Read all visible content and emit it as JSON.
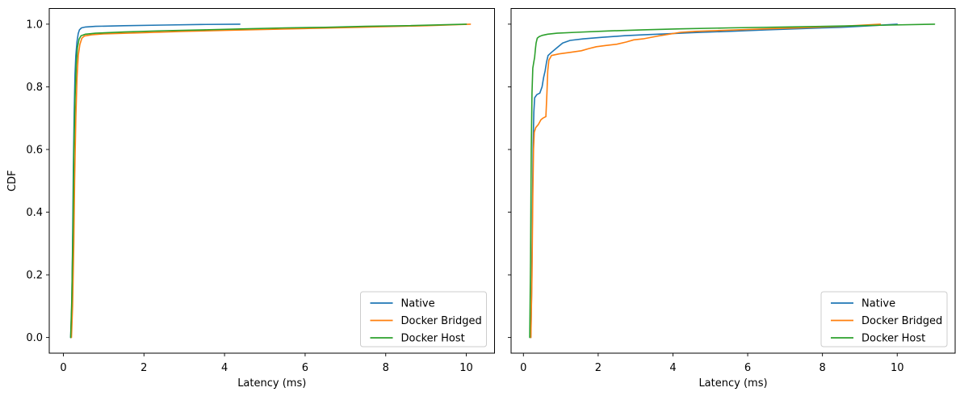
{
  "figure": {
    "background": "#ffffff"
  },
  "colors": {
    "native": "#1f77b4",
    "docker_bridged": "#ff7f0e",
    "docker_host": "#2ca02c",
    "spine": "#000000",
    "legend_border": "#cccccc"
  },
  "chart_data": [
    {
      "id": "left",
      "type": "line",
      "subtype": "cdf",
      "title": "",
      "xlabel": "Latency (ms)",
      "ylabel": "CDF",
      "xlim": [
        -0.35,
        10.7
      ],
      "ylim": [
        -0.05,
        1.05
      ],
      "xticks": [
        0,
        2,
        4,
        6,
        8,
        10
      ],
      "xtick_labels": [
        "0",
        "2",
        "4",
        "6",
        "8",
        "10"
      ],
      "yticks": [
        0.0,
        0.2,
        0.4,
        0.6,
        0.8,
        1.0
      ],
      "ytick_labels": [
        "0.0",
        "0.2",
        "0.4",
        "0.6",
        "0.8",
        "1.0"
      ],
      "show_ytick_labels": true,
      "grid": false,
      "legend": {
        "position": "lower right",
        "entries": [
          "Native",
          "Docker Bridged",
          "Docker Host"
        ]
      },
      "series": [
        {
          "name": "Native",
          "color": "#1f77b4",
          "points": [
            [
              0.18,
              0
            ],
            [
              0.21,
              0.1
            ],
            [
              0.23,
              0.3
            ],
            [
              0.25,
              0.55
            ],
            [
              0.27,
              0.72
            ],
            [
              0.29,
              0.84
            ],
            [
              0.31,
              0.9
            ],
            [
              0.34,
              0.945
            ],
            [
              0.37,
              0.97
            ],
            [
              0.4,
              0.982
            ],
            [
              0.45,
              0.988
            ],
            [
              0.55,
              0.991
            ],
            [
              0.8,
              0.993
            ],
            [
              1.5,
              0.995
            ],
            [
              2.5,
              0.997
            ],
            [
              3.4,
              0.999
            ],
            [
              4.38,
              1.0
            ]
          ]
        },
        {
          "name": "Docker Bridged",
          "color": "#ff7f0e",
          "points": [
            [
              0.2,
              0
            ],
            [
              0.23,
              0.1
            ],
            [
              0.26,
              0.3
            ],
            [
              0.28,
              0.5
            ],
            [
              0.31,
              0.7
            ],
            [
              0.34,
              0.83
            ],
            [
              0.37,
              0.9
            ],
            [
              0.41,
              0.935
            ],
            [
              0.46,
              0.955
            ],
            [
              0.52,
              0.962
            ],
            [
              0.7,
              0.966
            ],
            [
              1.0,
              0.969
            ],
            [
              2.0,
              0.973
            ],
            [
              3.0,
              0.977
            ],
            [
              4.0,
              0.98
            ],
            [
              5.0,
              0.983
            ],
            [
              6.0,
              0.986
            ],
            [
              7.0,
              0.989
            ],
            [
              8.0,
              0.992
            ],
            [
              9.0,
              0.995
            ],
            [
              10.1,
              1.0
            ]
          ]
        },
        {
          "name": "Docker Host",
          "color": "#2ca02c",
          "points": [
            [
              0.18,
              0
            ],
            [
              0.21,
              0.12
            ],
            [
              0.24,
              0.35
            ],
            [
              0.26,
              0.58
            ],
            [
              0.29,
              0.76
            ],
            [
              0.32,
              0.87
            ],
            [
              0.35,
              0.925
            ],
            [
              0.39,
              0.952
            ],
            [
              0.44,
              0.963
            ],
            [
              0.55,
              0.968
            ],
            [
              0.8,
              0.971
            ],
            [
              1.5,
              0.975
            ],
            [
              2.5,
              0.979
            ],
            [
              3.5,
              0.982
            ],
            [
              4.5,
              0.985
            ],
            [
              5.5,
              0.988
            ],
            [
              6.5,
              0.99
            ],
            [
              7.5,
              0.993
            ],
            [
              8.5,
              0.995
            ],
            [
              10.0,
              1.0
            ]
          ]
        }
      ]
    },
    {
      "id": "right",
      "type": "line",
      "subtype": "cdf",
      "title": "",
      "xlabel": "Latency (ms)",
      "ylabel": "",
      "xlim": [
        -0.33,
        11.55
      ],
      "ylim": [
        -0.05,
        1.05
      ],
      "xticks": [
        0,
        2,
        4,
        6,
        8,
        10
      ],
      "xtick_labels": [
        "0",
        "2",
        "4",
        "6",
        "8",
        "10"
      ],
      "yticks": [
        0.0,
        0.2,
        0.4,
        0.6,
        0.8,
        1.0
      ],
      "ytick_labels": [
        "0.0",
        "0.2",
        "0.4",
        "0.6",
        "0.8",
        "1.0"
      ],
      "show_ytick_labels": false,
      "grid": false,
      "legend": {
        "position": "lower right",
        "entries": [
          "Native",
          "Docker Bridged",
          "Docker Host"
        ]
      },
      "series": [
        {
          "name": "Native",
          "color": "#1f77b4",
          "points": [
            [
              0.2,
              0
            ],
            [
              0.22,
              0.15
            ],
            [
              0.24,
              0.4
            ],
            [
              0.26,
              0.62
            ],
            [
              0.28,
              0.72
            ],
            [
              0.3,
              0.765
            ],
            [
              0.36,
              0.775
            ],
            [
              0.44,
              0.78
            ],
            [
              0.5,
              0.8
            ],
            [
              0.54,
              0.83
            ],
            [
              0.58,
              0.85
            ],
            [
              0.62,
              0.88
            ],
            [
              0.66,
              0.9
            ],
            [
              0.75,
              0.91
            ],
            [
              0.9,
              0.925
            ],
            [
              1.05,
              0.94
            ],
            [
              1.25,
              0.948
            ],
            [
              1.6,
              0.953
            ],
            [
              2.1,
              0.958
            ],
            [
              2.7,
              0.963
            ],
            [
              3.2,
              0.966
            ],
            [
              3.8,
              0.969
            ],
            [
              4.5,
              0.973
            ],
            [
              5.5,
              0.977
            ],
            [
              6.5,
              0.982
            ],
            [
              7.5,
              0.986
            ],
            [
              8.5,
              0.99
            ],
            [
              9.3,
              0.995
            ],
            [
              10.0,
              1.0
            ]
          ]
        },
        {
          "name": "Docker Bridged",
          "color": "#ff7f0e",
          "points": [
            [
              0.2,
              0
            ],
            [
              0.23,
              0.2
            ],
            [
              0.25,
              0.45
            ],
            [
              0.27,
              0.6
            ],
            [
              0.29,
              0.655
            ],
            [
              0.33,
              0.67
            ],
            [
              0.4,
              0.68
            ],
            [
              0.47,
              0.695
            ],
            [
              0.52,
              0.7
            ],
            [
              0.6,
              0.705
            ],
            [
              0.63,
              0.78
            ],
            [
              0.65,
              0.85
            ],
            [
              0.68,
              0.885
            ],
            [
              0.75,
              0.9
            ],
            [
              0.95,
              0.905
            ],
            [
              1.25,
              0.91
            ],
            [
              1.55,
              0.915
            ],
            [
              1.75,
              0.922
            ],
            [
              1.95,
              0.928
            ],
            [
              2.2,
              0.932
            ],
            [
              2.5,
              0.936
            ],
            [
              2.75,
              0.943
            ],
            [
              2.95,
              0.95
            ],
            [
              3.2,
              0.953
            ],
            [
              3.6,
              0.962
            ],
            [
              3.9,
              0.968
            ],
            [
              4.2,
              0.974
            ],
            [
              4.6,
              0.977
            ],
            [
              5.5,
              0.981
            ],
            [
              6.5,
              0.985
            ],
            [
              7.5,
              0.989
            ],
            [
              8.5,
              0.993
            ],
            [
              9.55,
              1.0
            ]
          ]
        },
        {
          "name": "Docker Host",
          "color": "#2ca02c",
          "points": [
            [
              0.17,
              0
            ],
            [
              0.19,
              0.25
            ],
            [
              0.21,
              0.6
            ],
            [
              0.23,
              0.78
            ],
            [
              0.25,
              0.86
            ],
            [
              0.28,
              0.88
            ],
            [
              0.3,
              0.895
            ],
            [
              0.32,
              0.92
            ],
            [
              0.34,
              0.94
            ],
            [
              0.37,
              0.955
            ],
            [
              0.42,
              0.96
            ],
            [
              0.5,
              0.964
            ],
            [
              0.65,
              0.968
            ],
            [
              0.9,
              0.971
            ],
            [
              1.4,
              0.974
            ],
            [
              2.2,
              0.978
            ],
            [
              3.2,
              0.982
            ],
            [
              4.2,
              0.985
            ],
            [
              5.5,
              0.988
            ],
            [
              7.0,
              0.991
            ],
            [
              8.5,
              0.994
            ],
            [
              9.8,
              0.997
            ],
            [
              11.0,
              1.0
            ]
          ]
        }
      ]
    }
  ]
}
